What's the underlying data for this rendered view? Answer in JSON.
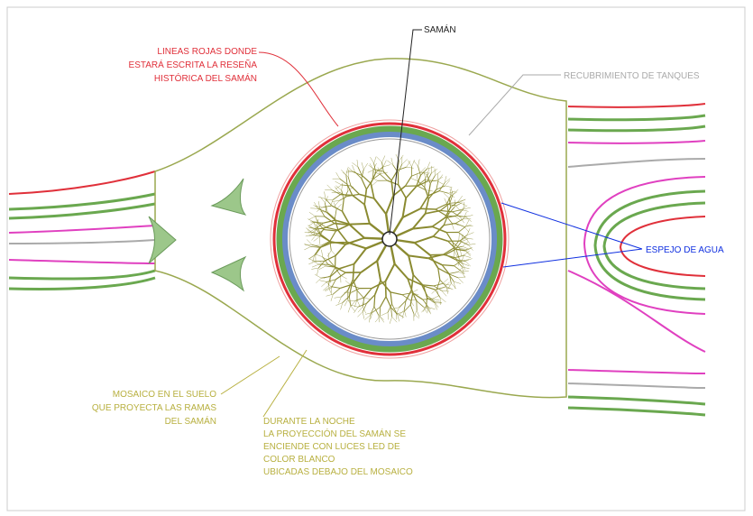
{
  "title": "SAMÁN",
  "labels": [
    {
      "lines": [
        "LINEAS ROJAS DONDE",
        "ESTARÁ ESCRITA LA RESEÑA",
        "HISTÓRICA DEL SAMÁN"
      ]
    },
    {
      "lines": [
        "RECUBRIMIENTO DE TANQUES"
      ]
    },
    {
      "lines": [
        "ESPEJO DE AGUA"
      ]
    },
    {
      "lines": [
        "MOSAICO EN EL SUELO",
        "QUE PROYECTA LAS RAMAS",
        "DEL SAMÁN"
      ]
    },
    {
      "lines": [
        "DURANTE LA NOCHE",
        "LA PROYECCIÓN DEL SAMÁN SE",
        "ENCIENDE CON LUCES LED DE",
        "COLOR BLANCO",
        "UBICADAS DEBAJO DEL MOSAICO"
      ]
    }
  ]
}
